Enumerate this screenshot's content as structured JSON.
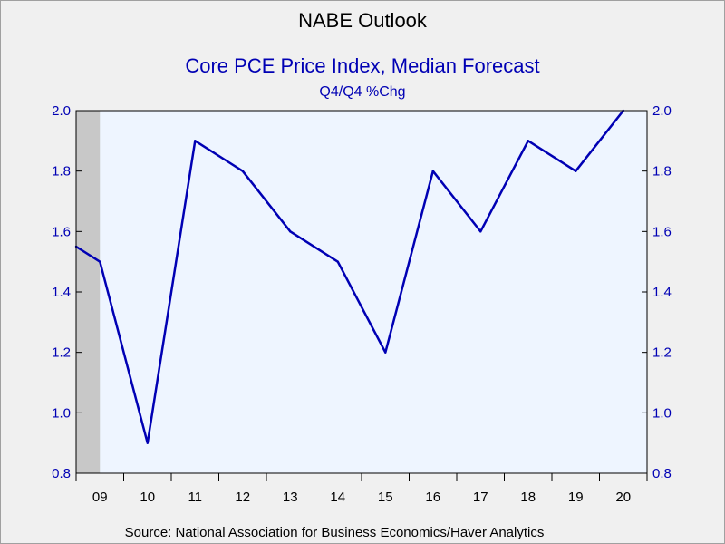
{
  "chart_data": {
    "type": "line",
    "title": "NABE Outlook",
    "subtitle": "Core PCE Price Index, Median Forecast",
    "unit_label": "Q4/Q4 %Chg",
    "source": "Source:  National Association for Business Economics/Haver Analytics",
    "x_tick_labels": [
      "09",
      "10",
      "11",
      "12",
      "13",
      "14",
      "15",
      "16",
      "17",
      "18",
      "19",
      "20"
    ],
    "ylim": [
      0.8,
      2.0
    ],
    "y_ticks": [
      "0.8",
      "1.0",
      "1.2",
      "1.4",
      "1.6",
      "1.8",
      "2.0"
    ],
    "shaded_region": {
      "x_start": 2008.5,
      "x_end": 2009.0
    },
    "series": [
      {
        "x": [
          2008.5,
          2009,
          2010,
          2011,
          2012,
          2013,
          2014,
          2015,
          2016,
          2017,
          2018,
          2019,
          2020
        ],
        "values": [
          1.55,
          1.5,
          0.9,
          1.9,
          1.8,
          1.6,
          1.5,
          1.2,
          1.8,
          1.6,
          1.9,
          1.8,
          2.0
        ]
      }
    ],
    "colors": {
      "line": "#0000b4",
      "plot_background": "#eef5ff",
      "page_background": "#f0f0f0",
      "shade": "#c8c8c8"
    }
  }
}
